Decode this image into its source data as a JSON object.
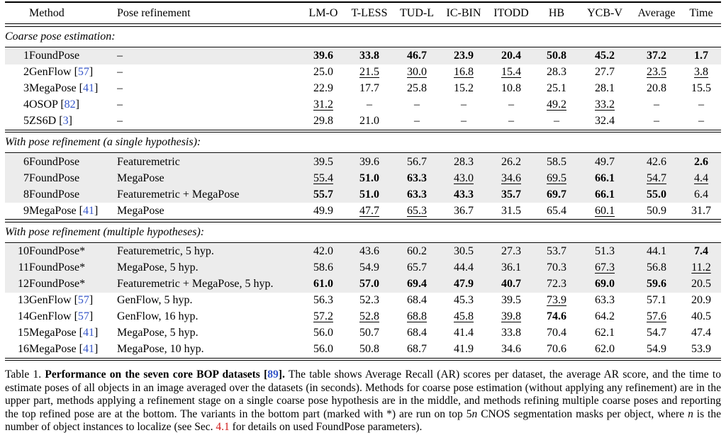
{
  "colors": {
    "citation_blue": "#3656c8",
    "section_ref_red": "#d11919",
    "row_highlight_gray": "#ececec"
  },
  "table": {
    "headers": [
      "",
      "Method",
      "Pose refinement",
      "LM-O",
      "T-LESS",
      "TUD-L",
      "IC-BIN",
      "ITODD",
      "HB",
      "YCB-V",
      "Average",
      "Time"
    ],
    "sections": [
      {
        "label": "Coarse pose estimation:",
        "rows": [
          {
            "num": "1",
            "method": "FoundPose",
            "cite": "",
            "refinement": "–",
            "shaded": true,
            "values": [
              {
                "v": "39.6",
                "s": "b"
              },
              {
                "v": "33.8",
                "s": "b"
              },
              {
                "v": "46.7",
                "s": "b"
              },
              {
                "v": "23.9",
                "s": "b"
              },
              {
                "v": "20.4",
                "s": "b"
              },
              {
                "v": "50.8",
                "s": "b"
              },
              {
                "v": "45.2",
                "s": "b"
              },
              {
                "v": "37.2",
                "s": "b"
              },
              {
                "v": "1.7",
                "s": "b"
              }
            ]
          },
          {
            "num": "2",
            "method": "GenFlow",
            "cite": "57",
            "refinement": "–",
            "shaded": false,
            "values": [
              {
                "v": "25.0",
                "s": ""
              },
              {
                "v": "21.5",
                "s": "u"
              },
              {
                "v": "30.0",
                "s": "u"
              },
              {
                "v": "16.8",
                "s": "u"
              },
              {
                "v": "15.4",
                "s": "u"
              },
              {
                "v": "28.3",
                "s": ""
              },
              {
                "v": "27.7",
                "s": ""
              },
              {
                "v": "23.5",
                "s": "u"
              },
              {
                "v": "3.8",
                "s": "u"
              }
            ]
          },
          {
            "num": "3",
            "method": "MegaPose",
            "cite": "41",
            "refinement": "–",
            "shaded": false,
            "values": [
              {
                "v": "22.9",
                "s": ""
              },
              {
                "v": "17.7",
                "s": ""
              },
              {
                "v": "25.8",
                "s": ""
              },
              {
                "v": "15.2",
                "s": ""
              },
              {
                "v": "10.8",
                "s": ""
              },
              {
                "v": "25.1",
                "s": ""
              },
              {
                "v": "28.1",
                "s": ""
              },
              {
                "v": "20.8",
                "s": ""
              },
              {
                "v": "15.5",
                "s": ""
              }
            ]
          },
          {
            "num": "4",
            "method": "OSOP",
            "cite": "82",
            "refinement": "–",
            "shaded": false,
            "values": [
              {
                "v": "31.2",
                "s": "u"
              },
              {
                "v": "–",
                "s": ""
              },
              {
                "v": "–",
                "s": ""
              },
              {
                "v": "–",
                "s": ""
              },
              {
                "v": "–",
                "s": ""
              },
              {
                "v": "49.2",
                "s": "u"
              },
              {
                "v": "33.2",
                "s": "u"
              },
              {
                "v": "–",
                "s": ""
              },
              {
                "v": "–",
                "s": ""
              }
            ]
          },
          {
            "num": "5",
            "method": "ZS6D",
            "cite": "3",
            "refinement": "–",
            "shaded": false,
            "values": [
              {
                "v": "29.8",
                "s": ""
              },
              {
                "v": "21.0",
                "s": ""
              },
              {
                "v": "–",
                "s": ""
              },
              {
                "v": "–",
                "s": ""
              },
              {
                "v": "–",
                "s": ""
              },
              {
                "v": "–",
                "s": ""
              },
              {
                "v": "32.4",
                "s": ""
              },
              {
                "v": "–",
                "s": ""
              },
              {
                "v": "–",
                "s": ""
              }
            ]
          }
        ]
      },
      {
        "label": "With pose refinement (a single hypothesis):",
        "rows": [
          {
            "num": "6",
            "method": "FoundPose",
            "cite": "",
            "refinement": "Featuremetric",
            "shaded": true,
            "values": [
              {
                "v": "39.5",
                "s": ""
              },
              {
                "v": "39.6",
                "s": ""
              },
              {
                "v": "56.7",
                "s": ""
              },
              {
                "v": "28.3",
                "s": ""
              },
              {
                "v": "26.2",
                "s": ""
              },
              {
                "v": "58.5",
                "s": ""
              },
              {
                "v": "49.7",
                "s": ""
              },
              {
                "v": "42.6",
                "s": ""
              },
              {
                "v": "2.6",
                "s": "b"
              }
            ]
          },
          {
            "num": "7",
            "method": "FoundPose",
            "cite": "",
            "refinement": "MegaPose",
            "shaded": true,
            "values": [
              {
                "v": "55.4",
                "s": "u"
              },
              {
                "v": "51.0",
                "s": "b"
              },
              {
                "v": "63.3",
                "s": "b"
              },
              {
                "v": "43.0",
                "s": "u"
              },
              {
                "v": "34.6",
                "s": "u"
              },
              {
                "v": "69.5",
                "s": "u"
              },
              {
                "v": "66.1",
                "s": "b"
              },
              {
                "v": "54.7",
                "s": "u"
              },
              {
                "v": "4.4",
                "s": "u"
              }
            ]
          },
          {
            "num": "8",
            "method": "FoundPose",
            "cite": "",
            "refinement": "Featuremetric + MegaPose",
            "shaded": true,
            "values": [
              {
                "v": "55.7",
                "s": "b"
              },
              {
                "v": "51.0",
                "s": "b"
              },
              {
                "v": "63.3",
                "s": "b"
              },
              {
                "v": "43.3",
                "s": "b"
              },
              {
                "v": "35.7",
                "s": "b"
              },
              {
                "v": "69.7",
                "s": "b"
              },
              {
                "v": "66.1",
                "s": "b"
              },
              {
                "v": "55.0",
                "s": "b"
              },
              {
                "v": "6.4",
                "s": ""
              }
            ]
          },
          {
            "num": "9",
            "method": "MegaPose",
            "cite": "41",
            "refinement": "MegaPose",
            "shaded": false,
            "values": [
              {
                "v": "49.9",
                "s": ""
              },
              {
                "v": "47.7",
                "s": "u"
              },
              {
                "v": "65.3",
                "s": "u"
              },
              {
                "v": "36.7",
                "s": ""
              },
              {
                "v": "31.5",
                "s": ""
              },
              {
                "v": "65.4",
                "s": ""
              },
              {
                "v": "60.1",
                "s": "u"
              },
              {
                "v": "50.9",
                "s": ""
              },
              {
                "v": "31.7",
                "s": ""
              }
            ]
          }
        ]
      },
      {
        "label": "With pose refinement (multiple hypotheses):",
        "rows": [
          {
            "num": "10",
            "method": "FoundPose*",
            "cite": "",
            "refinement": "Featuremetric, 5 hyp.",
            "shaded": true,
            "values": [
              {
                "v": "42.0",
                "s": ""
              },
              {
                "v": "43.6",
                "s": ""
              },
              {
                "v": "60.2",
                "s": ""
              },
              {
                "v": "30.5",
                "s": ""
              },
              {
                "v": "27.3",
                "s": ""
              },
              {
                "v": "53.7",
                "s": ""
              },
              {
                "v": "51.3",
                "s": ""
              },
              {
                "v": "44.1",
                "s": ""
              },
              {
                "v": "7.4",
                "s": "b"
              }
            ]
          },
          {
            "num": "11",
            "method": "FoundPose*",
            "cite": "",
            "refinement": "MegaPose, 5 hyp.",
            "shaded": true,
            "values": [
              {
                "v": "58.6",
                "s": ""
              },
              {
                "v": "54.9",
                "s": ""
              },
              {
                "v": "65.7",
                "s": ""
              },
              {
                "v": "44.4",
                "s": ""
              },
              {
                "v": "36.1",
                "s": ""
              },
              {
                "v": "70.3",
                "s": ""
              },
              {
                "v": "67.3",
                "s": "u"
              },
              {
                "v": "56.8",
                "s": ""
              },
              {
                "v": "11.2",
                "s": "u"
              }
            ]
          },
          {
            "num": "12",
            "method": "FoundPose*",
            "cite": "",
            "refinement": "Featuremetric + MegaPose, 5 hyp.",
            "shaded": true,
            "values": [
              {
                "v": "61.0",
                "s": "b"
              },
              {
                "v": "57.0",
                "s": "b"
              },
              {
                "v": "69.4",
                "s": "b"
              },
              {
                "v": "47.9",
                "s": "b"
              },
              {
                "v": "40.7",
                "s": "b"
              },
              {
                "v": "72.3",
                "s": ""
              },
              {
                "v": "69.0",
                "s": "b"
              },
              {
                "v": "59.6",
                "s": "b"
              },
              {
                "v": "20.5",
                "s": ""
              }
            ]
          },
          {
            "num": "13",
            "method": "GenFlow",
            "cite": "57",
            "refinement": "GenFlow, 5 hyp.",
            "shaded": false,
            "values": [
              {
                "v": "56.3",
                "s": ""
              },
              {
                "v": "52.3",
                "s": ""
              },
              {
                "v": "68.4",
                "s": ""
              },
              {
                "v": "45.3",
                "s": ""
              },
              {
                "v": "39.5",
                "s": ""
              },
              {
                "v": "73.9",
                "s": "u"
              },
              {
                "v": "63.3",
                "s": ""
              },
              {
                "v": "57.1",
                "s": ""
              },
              {
                "v": "20.9",
                "s": ""
              }
            ]
          },
          {
            "num": "14",
            "method": "GenFlow",
            "cite": "57",
            "refinement": "GenFlow, 16 hyp.",
            "shaded": false,
            "values": [
              {
                "v": "57.2",
                "s": "u"
              },
              {
                "v": "52.8",
                "s": "u"
              },
              {
                "v": "68.8",
                "s": "u"
              },
              {
                "v": "45.8",
                "s": "u"
              },
              {
                "v": "39.8",
                "s": "u"
              },
              {
                "v": "74.6",
                "s": "b"
              },
              {
                "v": "64.2",
                "s": ""
              },
              {
                "v": "57.6",
                "s": "u"
              },
              {
                "v": "40.5",
                "s": ""
              }
            ]
          },
          {
            "num": "15",
            "method": "MegaPose",
            "cite": "41",
            "refinement": "MegaPose, 5 hyp.",
            "shaded": false,
            "values": [
              {
                "v": "56.0",
                "s": ""
              },
              {
                "v": "50.7",
                "s": ""
              },
              {
                "v": "68.4",
                "s": ""
              },
              {
                "v": "41.4",
                "s": ""
              },
              {
                "v": "33.8",
                "s": ""
              },
              {
                "v": "70.4",
                "s": ""
              },
              {
                "v": "62.1",
                "s": ""
              },
              {
                "v": "54.7",
                "s": ""
              },
              {
                "v": "47.4",
                "s": ""
              }
            ]
          },
          {
            "num": "16",
            "method": "MegaPose",
            "cite": "41",
            "refinement": "MegaPose, 10 hyp.",
            "shaded": false,
            "values": [
              {
                "v": "56.0",
                "s": ""
              },
              {
                "v": "50.8",
                "s": ""
              },
              {
                "v": "68.7",
                "s": ""
              },
              {
                "v": "41.9",
                "s": ""
              },
              {
                "v": "34.6",
                "s": ""
              },
              {
                "v": "70.6",
                "s": ""
              },
              {
                "v": "62.0",
                "s": ""
              },
              {
                "v": "54.9",
                "s": ""
              },
              {
                "v": "53.9",
                "s": ""
              }
            ]
          }
        ]
      }
    ]
  },
  "caption": {
    "segments": [
      {
        "t": "Table 1. ",
        "s": ""
      },
      {
        "t": "Performance on the seven core BOP datasets ",
        "s": "b"
      },
      {
        "t": "[",
        "s": "b"
      },
      {
        "t": "89",
        "s": "bc"
      },
      {
        "t": "].",
        "s": "b"
      },
      {
        "t": " The table shows Average Recall (AR) scores per dataset, the average AR score, and the time to estimate poses of all objects in an image averaged over the datasets (in seconds). Methods for coarse pose estimation (without applying any refinement) are in the upper part, methods applying a refinement stage on a single coarse pose hypothesis are in the middle, and methods refining multiple coarse poses and reporting the top refined pose are at the bottom. The variants in the bottom part (marked with *) are run on top 5",
        "s": ""
      },
      {
        "t": "n",
        "s": "i"
      },
      {
        "t": " CNOS segmentation masks per object, where ",
        "s": ""
      },
      {
        "t": "n",
        "s": "i"
      },
      {
        "t": " is the number of object instances to localize (see Sec. ",
        "s": ""
      },
      {
        "t": "4.1",
        "s": "r"
      },
      {
        "t": " for details on used FoundPose parameters).",
        "s": ""
      }
    ]
  }
}
